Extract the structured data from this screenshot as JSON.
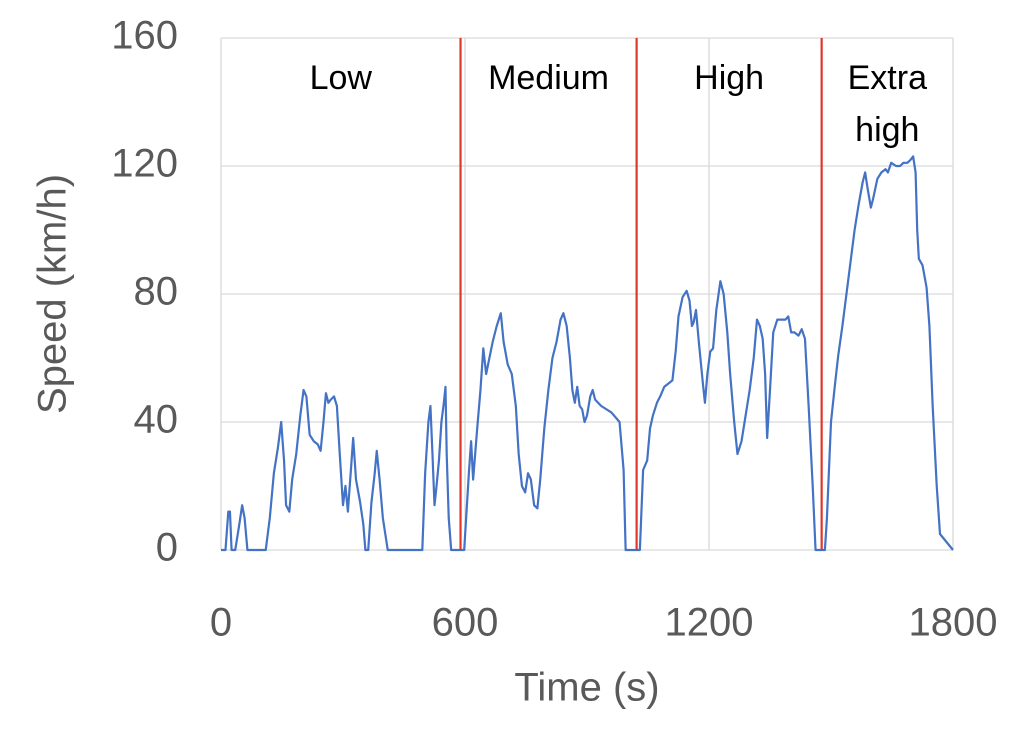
{
  "chart_data": {
    "type": "line",
    "xlabel": "Time (s)",
    "ylabel": "Speed (km/h)",
    "xlim": [
      0,
      1800
    ],
    "xticks": [
      0,
      600,
      1200,
      1800
    ],
    "ylim": [
      0,
      160
    ],
    "yticks": [
      0,
      40,
      80,
      120,
      160
    ],
    "grid": true,
    "color": "#4472c4",
    "phase_boundaries": [
      589,
      1022,
      1477
    ],
    "boundary_color": "#e0362b",
    "annotations": [
      "Low",
      "Medium",
      "High",
      "Extra high"
    ],
    "x": [
      0,
      11,
      18,
      22,
      26,
      35,
      45,
      52,
      58,
      65,
      110,
      120,
      130,
      140,
      148,
      155,
      160,
      168,
      175,
      185,
      195,
      203,
      210,
      218,
      228,
      238,
      245,
      252,
      258,
      264,
      270,
      278,
      285,
      292,
      300,
      306,
      312,
      320,
      325,
      332,
      342,
      350,
      355,
      362,
      370,
      378,
      383,
      390,
      398,
      410,
      495,
      502,
      510,
      515,
      520,
      525,
      530,
      536,
      542,
      548,
      552,
      555,
      560,
      566,
      589,
      598,
      610,
      615,
      620,
      630,
      638,
      645,
      652,
      660,
      668,
      678,
      688,
      695,
      705,
      715,
      725,
      732,
      740,
      748,
      755,
      762,
      770,
      778,
      785,
      795,
      805,
      815,
      825,
      835,
      842,
      850,
      858,
      864,
      870,
      876,
      882,
      888,
      894,
      900,
      908,
      914,
      920,
      935,
      960,
      980,
      990,
      995,
      1022,
      1030,
      1038,
      1048,
      1055,
      1062,
      1072,
      1080,
      1090,
      1100,
      1110,
      1118,
      1125,
      1135,
      1145,
      1152,
      1158,
      1162,
      1168,
      1175,
      1185,
      1190,
      1196,
      1203,
      1210,
      1218,
      1228,
      1236,
      1245,
      1252,
      1262,
      1270,
      1280,
      1290,
      1300,
      1310,
      1318,
      1325,
      1332,
      1338,
      1343,
      1350,
      1358,
      1368,
      1378,
      1388,
      1395,
      1402,
      1410,
      1420,
      1428,
      1436,
      1445,
      1455,
      1462,
      1477,
      1485,
      1490,
      1500,
      1510,
      1518,
      1528,
      1538,
      1548,
      1558,
      1568,
      1578,
      1584,
      1590,
      1598,
      1604,
      1614,
      1624,
      1634,
      1640,
      1648,
      1660,
      1670,
      1678,
      1688,
      1696,
      1702,
      1708,
      1712,
      1716,
      1725,
      1735,
      1742,
      1750,
      1760,
      1768,
      1800
    ],
    "values": [
      0,
      0,
      12,
      12,
      0,
      0,
      8,
      14,
      10,
      0,
      0,
      10,
      24,
      32,
      40,
      28,
      14,
      12,
      22,
      30,
      42,
      50,
      48,
      36,
      34,
      33,
      31,
      40,
      49,
      46,
      47,
      48,
      45,
      30,
      14,
      20,
      12,
      26,
      35,
      22,
      15,
      8,
      0,
      0,
      15,
      24,
      31,
      22,
      10,
      0,
      0,
      24,
      40,
      45,
      30,
      14,
      20,
      28,
      40,
      46,
      51,
      30,
      10,
      0,
      0,
      0,
      25,
      34,
      22,
      38,
      50,
      63,
      55,
      60,
      65,
      70,
      74,
      65,
      58,
      55,
      45,
      30,
      20,
      18,
      24,
      22,
      14,
      13,
      22,
      38,
      50,
      60,
      65,
      72,
      74,
      70,
      60,
      50,
      46,
      51,
      45,
      44,
      40,
      42,
      48,
      50,
      47,
      45,
      43,
      40,
      25,
      0,
      0,
      0,
      25,
      28,
      38,
      42,
      46,
      48,
      51,
      52,
      53,
      62,
      73,
      79,
      81,
      78,
      70,
      71,
      75,
      65,
      52,
      46,
      55,
      62,
      63,
      75,
      84,
      80,
      68,
      55,
      40,
      30,
      34,
      42,
      50,
      60,
      72,
      70,
      66,
      55,
      35,
      50,
      68,
      72,
      72,
      72,
      73,
      68,
      68,
      67,
      69,
      66,
      45,
      20,
      0,
      0,
      0,
      10,
      40,
      52,
      61,
      70,
      80,
      90,
      100,
      108,
      115,
      118,
      113,
      107,
      110,
      116,
      118,
      119,
      118,
      121,
      120,
      120,
      121,
      121,
      122,
      123,
      118,
      100,
      91,
      89,
      82,
      70,
      45,
      20,
      5,
      0
    ]
  }
}
